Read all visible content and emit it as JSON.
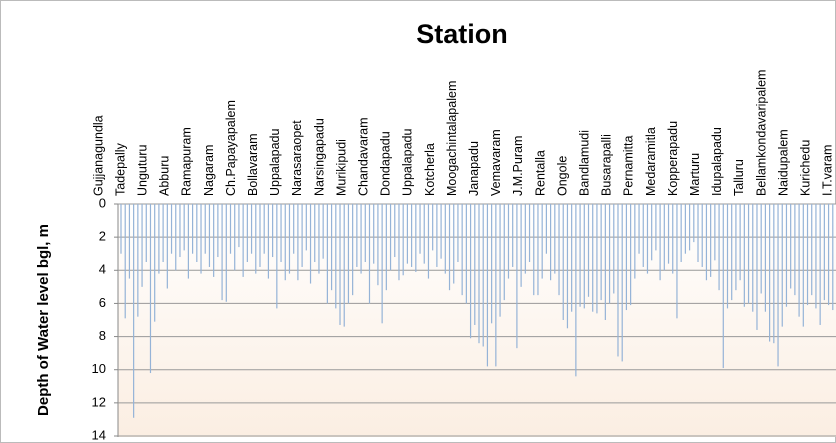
{
  "chart_data": {
    "type": "bar",
    "title": "Station",
    "y_label": "Depth of Water level bgl, m",
    "categories": [
      "Gujjanagundla",
      null,
      null,
      null,
      null,
      "Tadepally",
      null,
      null,
      null,
      null,
      "Unguturu",
      null,
      null,
      null,
      null,
      "Abburu",
      null,
      null,
      null,
      null,
      "Ramapuram",
      null,
      null,
      null,
      null,
      "Nagaram",
      null,
      null,
      null,
      null,
      "Ch.Papayapalem",
      null,
      null,
      null,
      null,
      "Bollavaram",
      null,
      null,
      null,
      null,
      "Uppalapadu",
      null,
      null,
      null,
      null,
      "Narasaraopet",
      null,
      null,
      null,
      null,
      "Narsingapadu",
      null,
      null,
      null,
      null,
      "Murikipudi",
      null,
      null,
      null,
      null,
      "Chandavaram",
      null,
      null,
      null,
      null,
      "Dondapadu",
      null,
      null,
      null,
      null,
      "Uppalapadu",
      null,
      null,
      null,
      null,
      "Kotcherla",
      null,
      null,
      null,
      null,
      "Moogachintalapalem",
      null,
      null,
      null,
      null,
      "Janapadu",
      null,
      null,
      null,
      null,
      "Vemavaram",
      null,
      null,
      null,
      null,
      "J.M.Puram",
      null,
      null,
      null,
      null,
      "Rentalla",
      null,
      null,
      null,
      null,
      "Ongole",
      null,
      null,
      null,
      null,
      "Bandlamudi",
      null,
      null,
      null,
      null,
      "Busarapalli",
      null,
      null,
      null,
      null,
      "Pernamitta",
      null,
      null,
      null,
      null,
      "Medaramitla",
      null,
      null,
      null,
      null,
      "Kopperapadu",
      null,
      null,
      null,
      null,
      "Marturu",
      null,
      null,
      null,
      null,
      "Idupalapadu",
      null,
      null,
      null,
      null,
      "Talluru",
      null,
      null,
      null,
      null,
      "Bellamkondavaripalem",
      null,
      null,
      null,
      null,
      "Naidupalem",
      null,
      null,
      null,
      null,
      "Kurichedu",
      null,
      null,
      null,
      null,
      "I.T.varam",
      null,
      null,
      null,
      null
    ],
    "values": [
      3,
      6.9,
      4.5,
      12.9,
      6.8,
      5,
      3.5,
      10.2,
      7.1,
      4.2,
      3.5,
      5.1,
      3,
      4,
      3.2,
      2.8,
      4.5,
      3,
      3.5,
      4.2,
      3,
      3.8,
      4.4,
      3.2,
      5.8,
      5.9,
      3,
      4,
      2.6,
      4.4,
      3.5,
      3,
      4.2,
      3.8,
      3,
      4.5,
      3.2,
      6.3,
      3.5,
      4.6,
      4.2,
      3,
      4.6,
      3.8,
      2.8,
      4.8,
      3.5,
      4.2,
      3.3,
      6,
      5.2,
      6.3,
      7.3,
      7.4,
      6,
      5.5,
      3.8,
      4.2,
      3.5,
      6,
      3.6,
      4.9,
      7.2,
      5.2,
      4,
      3.2,
      4.6,
      4.3,
      3.6,
      3.8,
      4.1,
      3,
      3.6,
      4.5,
      2.8,
      3.8,
      3.3,
      4.2,
      5.2,
      4.8,
      3.5,
      5.5,
      6,
      8.1,
      7.3,
      8.4,
      8.6,
      9.8,
      7.2,
      9.8,
      6.8,
      5.8,
      4.5,
      3.8,
      8.7,
      5,
      4.2,
      3.5,
      5.5,
      5.5,
      4.5,
      3,
      4.6,
      4.2,
      5.5,
      7,
      7.5,
      6.5,
      10.4,
      6.2,
      6.3,
      5.6,
      6.5,
      6.6,
      5.8,
      7,
      6,
      5.4,
      9.2,
      9.5,
      6.4,
      6.1,
      4.5,
      3,
      3.8,
      4.2,
      3.4,
      2.8,
      4.6,
      4,
      3.6,
      4.2,
      6.9,
      3.5,
      3,
      2.8,
      2.3,
      3.5,
      3.8,
      4.6,
      4.4,
      3.4,
      5.2,
      9.9,
      6.3,
      5.8,
      5.2,
      4.6,
      6.2,
      6,
      6.5,
      7.6,
      5.4,
      6.5,
      8.3,
      8.4,
      9.8,
      7.4,
      6.2,
      5.1,
      5.5,
      6.8,
      7.4,
      6.1,
      5.5,
      6.3,
      7.3,
      5.8,
      6.1,
      6.4
    ],
    "color": "#95b3d7",
    "ylim": [
      0,
      14
    ],
    "yticks": [
      0,
      2,
      4,
      6,
      8,
      10,
      12,
      14
    ],
    "y_inverted": true,
    "grid": true
  }
}
